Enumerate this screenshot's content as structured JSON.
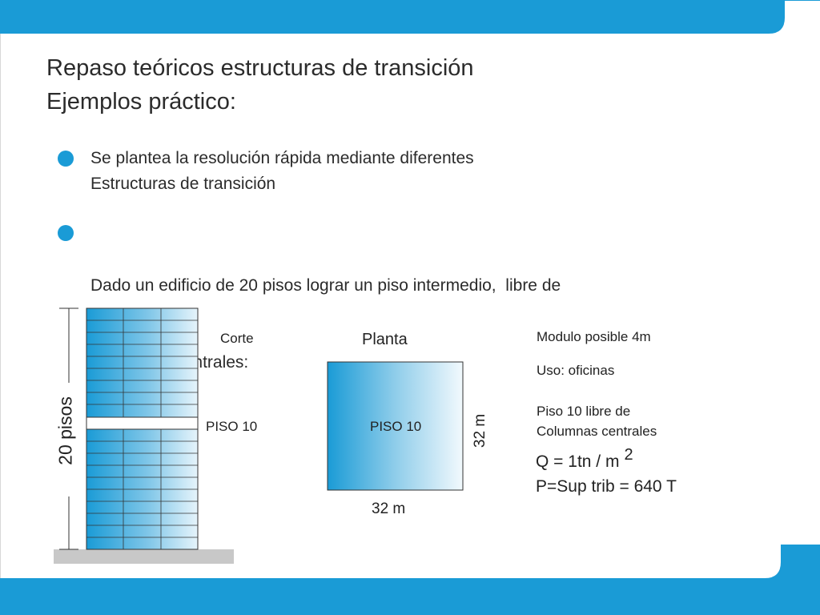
{
  "title": {
    "line1": "Repaso teóricos estructuras de transición",
    "line2": "Ejemplos práctico:"
  },
  "bullets": [
    {
      "line1": "Se plantea la resolución rápida mediante diferentes",
      "line2": "Estructuras de transición"
    },
    {
      "line1": "Dado un edificio de 20 pisos lograr un piso intermedio,  libre de",
      "line2": " Columnas centrales:"
    }
  ],
  "section": {
    "height_label": "20 pisos",
    "corte_label": "Corte",
    "piso_label": "PISO 10"
  },
  "plan": {
    "title": "Planta",
    "center_label": "PISO 10",
    "side_dim": "32 m",
    "bottom_dim": "32 m"
  },
  "notes": {
    "modulo": "Modulo posible 4m",
    "uso": "Uso: oficinas",
    "piso_line1": "Piso 10 libre de",
    "piso_line2": "Columnas centrales",
    "q_text": "Q = 1tn / m",
    "q_exp": "2",
    "p_text": "P=Sup trib = 640 T"
  },
  "colors": {
    "accent": "#1a9bd6",
    "ground": "#c8c8c8"
  }
}
